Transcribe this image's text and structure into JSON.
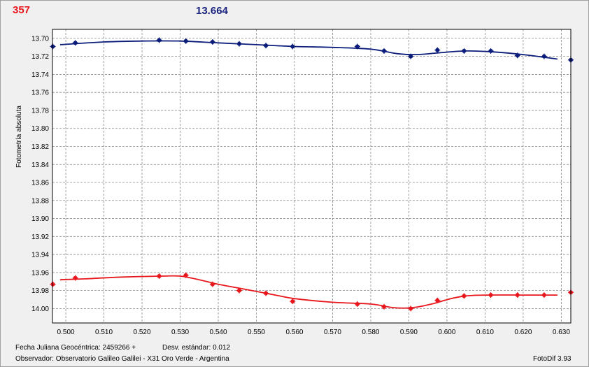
{
  "header": {
    "left_value": "357",
    "center_value": "13.664"
  },
  "colors": {
    "series_top": "#0b1c7a",
    "series_bottom": "#e8171d",
    "grid": "#8a8a8a",
    "plot_bg": "#ffffff"
  },
  "footer": {
    "jd_label": "Fecha Juliana Geocéntrica: 2459266 +",
    "std_label": "Desv. estándar: 0.012",
    "observer": "Observador: Observatorio Galileo Galilei - X31 Oro Verde - Argentina",
    "software": "FotoDif 3.93"
  },
  "chart_data": {
    "type": "scatter",
    "title": "",
    "xlabel": "",
    "ylabel": "Fotometría absoluta",
    "xlim": [
      0.4965,
      0.6325
    ],
    "ylim": [
      13.69,
      14.016
    ],
    "y_inverted": true,
    "grid": true,
    "x_ticks": [
      "0.500",
      "0.510",
      "0.520",
      "0.530",
      "0.540",
      "0.550",
      "0.560",
      "0.570",
      "0.580",
      "0.590",
      "0.600",
      "0.610",
      "0.620",
      "0.630"
    ],
    "y_ticks": [
      "13.70",
      "13.72",
      "13.74",
      "13.76",
      "13.78",
      "13.80",
      "13.82",
      "13.84",
      "13.86",
      "13.88",
      "13.90",
      "13.92",
      "13.94",
      "13.96",
      "13.98",
      "14.00"
    ],
    "series": [
      {
        "points": [
          [
            0.4966,
            13.709
          ],
          [
            0.5025,
            13.705
          ],
          [
            0.5245,
            13.702
          ],
          [
            0.5315,
            13.703
          ],
          [
            0.5385,
            13.704
          ],
          [
            0.5455,
            13.706
          ],
          [
            0.5525,
            13.708
          ],
          [
            0.5595,
            13.709
          ],
          [
            0.5765,
            13.709
          ],
          [
            0.5835,
            13.714
          ],
          [
            0.5905,
            13.72
          ],
          [
            0.5975,
            13.713
          ],
          [
            0.6045,
            13.714
          ],
          [
            0.6115,
            13.714
          ],
          [
            0.6185,
            13.719
          ],
          [
            0.6255,
            13.72
          ],
          [
            0.6325,
            13.724
          ]
        ],
        "fit": [
          [
            0.4985,
            13.707
          ],
          [
            0.51,
            13.704
          ],
          [
            0.52,
            13.703
          ],
          [
            0.53,
            13.703
          ],
          [
            0.54,
            13.705
          ],
          [
            0.55,
            13.707
          ],
          [
            0.56,
            13.709
          ],
          [
            0.57,
            13.71
          ],
          [
            0.58,
            13.712
          ],
          [
            0.587,
            13.717
          ],
          [
            0.592,
            13.718
          ],
          [
            0.598,
            13.716
          ],
          [
            0.605,
            13.714
          ],
          [
            0.612,
            13.715
          ],
          [
            0.62,
            13.718
          ],
          [
            0.629,
            13.723
          ]
        ]
      },
      {
        "points": [
          [
            0.4966,
            13.973
          ],
          [
            0.5025,
            13.966
          ],
          [
            0.5245,
            13.964
          ],
          [
            0.5315,
            13.963
          ],
          [
            0.5385,
            13.973
          ],
          [
            0.5455,
            13.98
          ],
          [
            0.5525,
            13.983
          ],
          [
            0.5595,
            13.992
          ],
          [
            0.5765,
            13.995
          ],
          [
            0.5835,
            13.998
          ],
          [
            0.5905,
            14.0
          ],
          [
            0.5975,
            13.991
          ],
          [
            0.6045,
            13.986
          ],
          [
            0.6115,
            13.985
          ],
          [
            0.6185,
            13.985
          ],
          [
            0.6255,
            13.985
          ],
          [
            0.6325,
            13.982
          ]
        ],
        "fit": [
          [
            0.4985,
            13.968
          ],
          [
            0.505,
            13.967
          ],
          [
            0.515,
            13.965
          ],
          [
            0.525,
            13.964
          ],
          [
            0.53,
            13.964
          ],
          [
            0.535,
            13.968
          ],
          [
            0.54,
            13.973
          ],
          [
            0.545,
            13.977
          ],
          [
            0.55,
            13.981
          ],
          [
            0.555,
            13.985
          ],
          [
            0.56,
            13.989
          ],
          [
            0.57,
            13.993
          ],
          [
            0.58,
            13.995
          ],
          [
            0.586,
            13.999
          ],
          [
            0.591,
            13.999
          ],
          [
            0.596,
            13.995
          ],
          [
            0.601,
            13.989
          ],
          [
            0.605,
            13.986
          ],
          [
            0.61,
            13.985
          ],
          [
            0.62,
            13.985
          ],
          [
            0.629,
            13.985
          ]
        ]
      }
    ]
  }
}
